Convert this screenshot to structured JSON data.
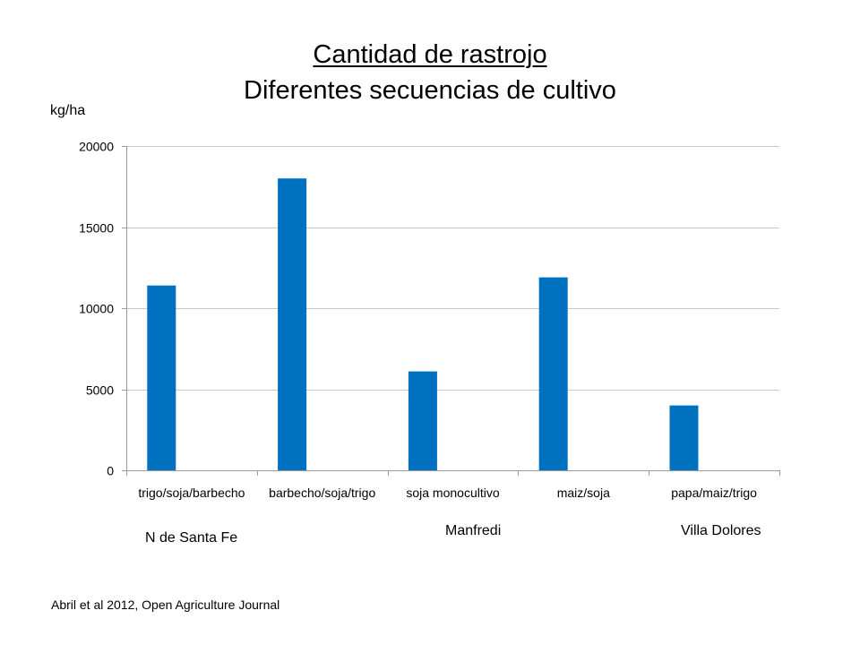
{
  "chart_data": {
    "type": "bar",
    "title": "Cantidad de rastrojo",
    "subtitle": "Diferentes secuencias de cultivo",
    "ylabel": "kg/ha",
    "xlabel": "",
    "categories": [
      "trigo/soja/barbecho",
      "barbecho/soja/trigo",
      "soja monocultivo",
      "maiz/soja",
      "papa/maiz/trigo"
    ],
    "values": [
      11400,
      18000,
      6100,
      11900,
      4000
    ],
    "ylim": [
      0,
      20000
    ],
    "yticks": [
      0,
      5000,
      10000,
      15000,
      20000
    ],
    "grid": true,
    "legend": "none",
    "bar_color": "#0070c0"
  },
  "region_labels": [
    "N de Santa Fe",
    "Manfredi",
    "Villa Dolores"
  ],
  "citation": "Abril et al 2012, Open Agriculture Journal"
}
